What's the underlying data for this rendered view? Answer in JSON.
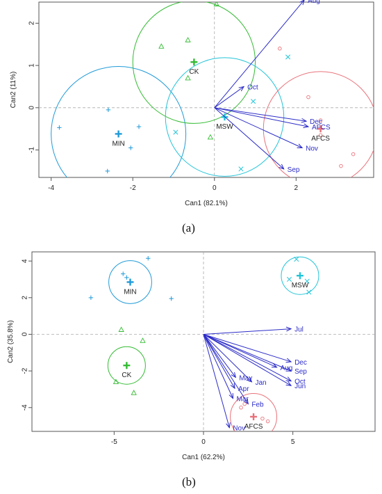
{
  "panel_labels": [
    "(a)",
    "(b)"
  ],
  "colors": {
    "AFCS": "#e8727a",
    "CK": "#33bb33",
    "MSW": "#22c4d8",
    "MIN": "#1f9ad8",
    "arrow": "#2b2bc8",
    "axis": "#555555"
  },
  "chart_data": [
    {
      "type": "scatter",
      "xlabel": "Can1 (82.1%)",
      "ylabel": "Can2 (11%)",
      "xlim": [
        -4.3,
        3.9
      ],
      "ylim": [
        -1.65,
        2.5
      ],
      "xticks": [
        -4,
        -2,
        0,
        2
      ],
      "yticks": [
        -1,
        0,
        1,
        2
      ],
      "grid": false,
      "zero_lines": true,
      "groups": [
        {
          "name": "MIN",
          "marker": "plus",
          "centroid": [
            -2.35,
            -0.62
          ],
          "radius_x": 1.65,
          "points": [
            [
              -3.8,
              -0.47
            ],
            [
              -2.6,
              -0.05
            ],
            [
              -1.85,
              -0.45
            ],
            [
              -2.05,
              -0.95
            ],
            [
              -2.62,
              -1.5
            ]
          ]
        },
        {
          "name": "CK",
          "marker": "triangle",
          "centroid": [
            -0.5,
            1.08
          ],
          "radius_x": 1.5,
          "points": [
            [
              0.05,
              2.45
            ],
            [
              -0.65,
              1.6
            ],
            [
              -1.3,
              1.45
            ],
            [
              -0.65,
              0.7
            ],
            [
              -0.1,
              -0.7
            ]
          ]
        },
        {
          "name": "MSW",
          "marker": "x",
          "centroid": [
            0.25,
            -0.22
          ],
          "radius_x": 1.45,
          "points": [
            [
              -0.95,
              -0.58
            ],
            [
              0.95,
              0.15
            ],
            [
              1.8,
              1.2
            ],
            [
              0.65,
              -1.45
            ]
          ]
        },
        {
          "name": "AFCS",
          "marker": "circle",
          "centroid": [
            2.6,
            -0.5
          ],
          "radius_x": 1.4,
          "points": [
            [
              1.6,
              1.4
            ],
            [
              2.3,
              0.25
            ],
            [
              2.6,
              -0.3
            ],
            [
              2.6,
              -0.65
            ],
            [
              3.4,
              -1.1
            ],
            [
              3.1,
              -1.38
            ]
          ]
        }
      ],
      "vectors": [
        {
          "label": "Aug",
          "x": 2.2,
          "y": 2.55
        },
        {
          "label": "Oct",
          "x": 0.72,
          "y": 0.5
        },
        {
          "label": "Dec",
          "x": 2.25,
          "y": -0.32
        },
        {
          "label": "AFCS",
          "x": 2.3,
          "y": -0.45
        },
        {
          "label": "Nov",
          "x": 2.15,
          "y": -0.95
        },
        {
          "label": "Sep",
          "x": 1.7,
          "y": -1.45
        }
      ]
    },
    {
      "type": "scatter",
      "xlabel": "Can1 (62.2%)",
      "ylabel": "Can2 (35.8%)",
      "xlim": [
        -9.6,
        9.6
      ],
      "ylim": [
        -5.3,
        4.5
      ],
      "xticks": [
        -5,
        0,
        5
      ],
      "yticks": [
        -4,
        -2,
        0,
        2,
        4
      ],
      "grid": false,
      "zero_lines": true,
      "groups": [
        {
          "name": "MIN",
          "marker": "plus",
          "centroid": [
            -4.1,
            2.85
          ],
          "radius_x": 1.2,
          "points": [
            [
              -4.5,
              3.3
            ],
            [
              -3.1,
              4.15
            ],
            [
              -6.3,
              2.0
            ],
            [
              -1.8,
              1.95
            ],
            [
              -4.3,
              3.1
            ]
          ]
        },
        {
          "name": "MSW",
          "marker": "x",
          "centroid": [
            5.4,
            3.2
          ],
          "radius_x": 1.05,
          "points": [
            [
              5.2,
              4.1
            ],
            [
              4.8,
              3.0
            ],
            [
              5.8,
              2.9
            ],
            [
              5.9,
              2.3
            ]
          ]
        },
        {
          "name": "CK",
          "marker": "triangle",
          "centroid": [
            -4.3,
            -1.7
          ],
          "radius_x": 1.05,
          "points": [
            [
              -4.6,
              0.25
            ],
            [
              -3.4,
              -0.35
            ],
            [
              -4.9,
              -2.6
            ],
            [
              -3.9,
              -3.2
            ]
          ]
        },
        {
          "name": "AFCS",
          "marker": "circle",
          "centroid": [
            2.8,
            -4.5
          ],
          "radius_x": 1.3,
          "points": [
            [
              2.3,
              -3.8
            ],
            [
              2.1,
              -4.0
            ],
            [
              3.3,
              -4.6
            ],
            [
              3.6,
              -4.75
            ]
          ]
        }
      ],
      "vectors": [
        {
          "label": "Jul",
          "x": 4.9,
          "y": 0.3
        },
        {
          "label": "Dec",
          "x": 4.9,
          "y": -1.5
        },
        {
          "label": "Aug",
          "x": 4.1,
          "y": -1.8
        },
        {
          "label": "Sep",
          "x": 4.9,
          "y": -2.0
        },
        {
          "label": "Oct",
          "x": 4.9,
          "y": -2.55
        },
        {
          "label": "Jun",
          "x": 4.9,
          "y": -2.8
        },
        {
          "label": "Jan",
          "x": 2.7,
          "y": -2.6
        },
        {
          "label": "May",
          "x": 1.8,
          "y": -2.35
        },
        {
          "label": "Apr",
          "x": 1.75,
          "y": -2.95
        },
        {
          "label": "Mar",
          "x": 1.65,
          "y": -3.5
        },
        {
          "label": "Feb",
          "x": 2.5,
          "y": -3.8
        },
        {
          "label": "Nov",
          "x": 1.45,
          "y": -5.1
        }
      ]
    }
  ]
}
